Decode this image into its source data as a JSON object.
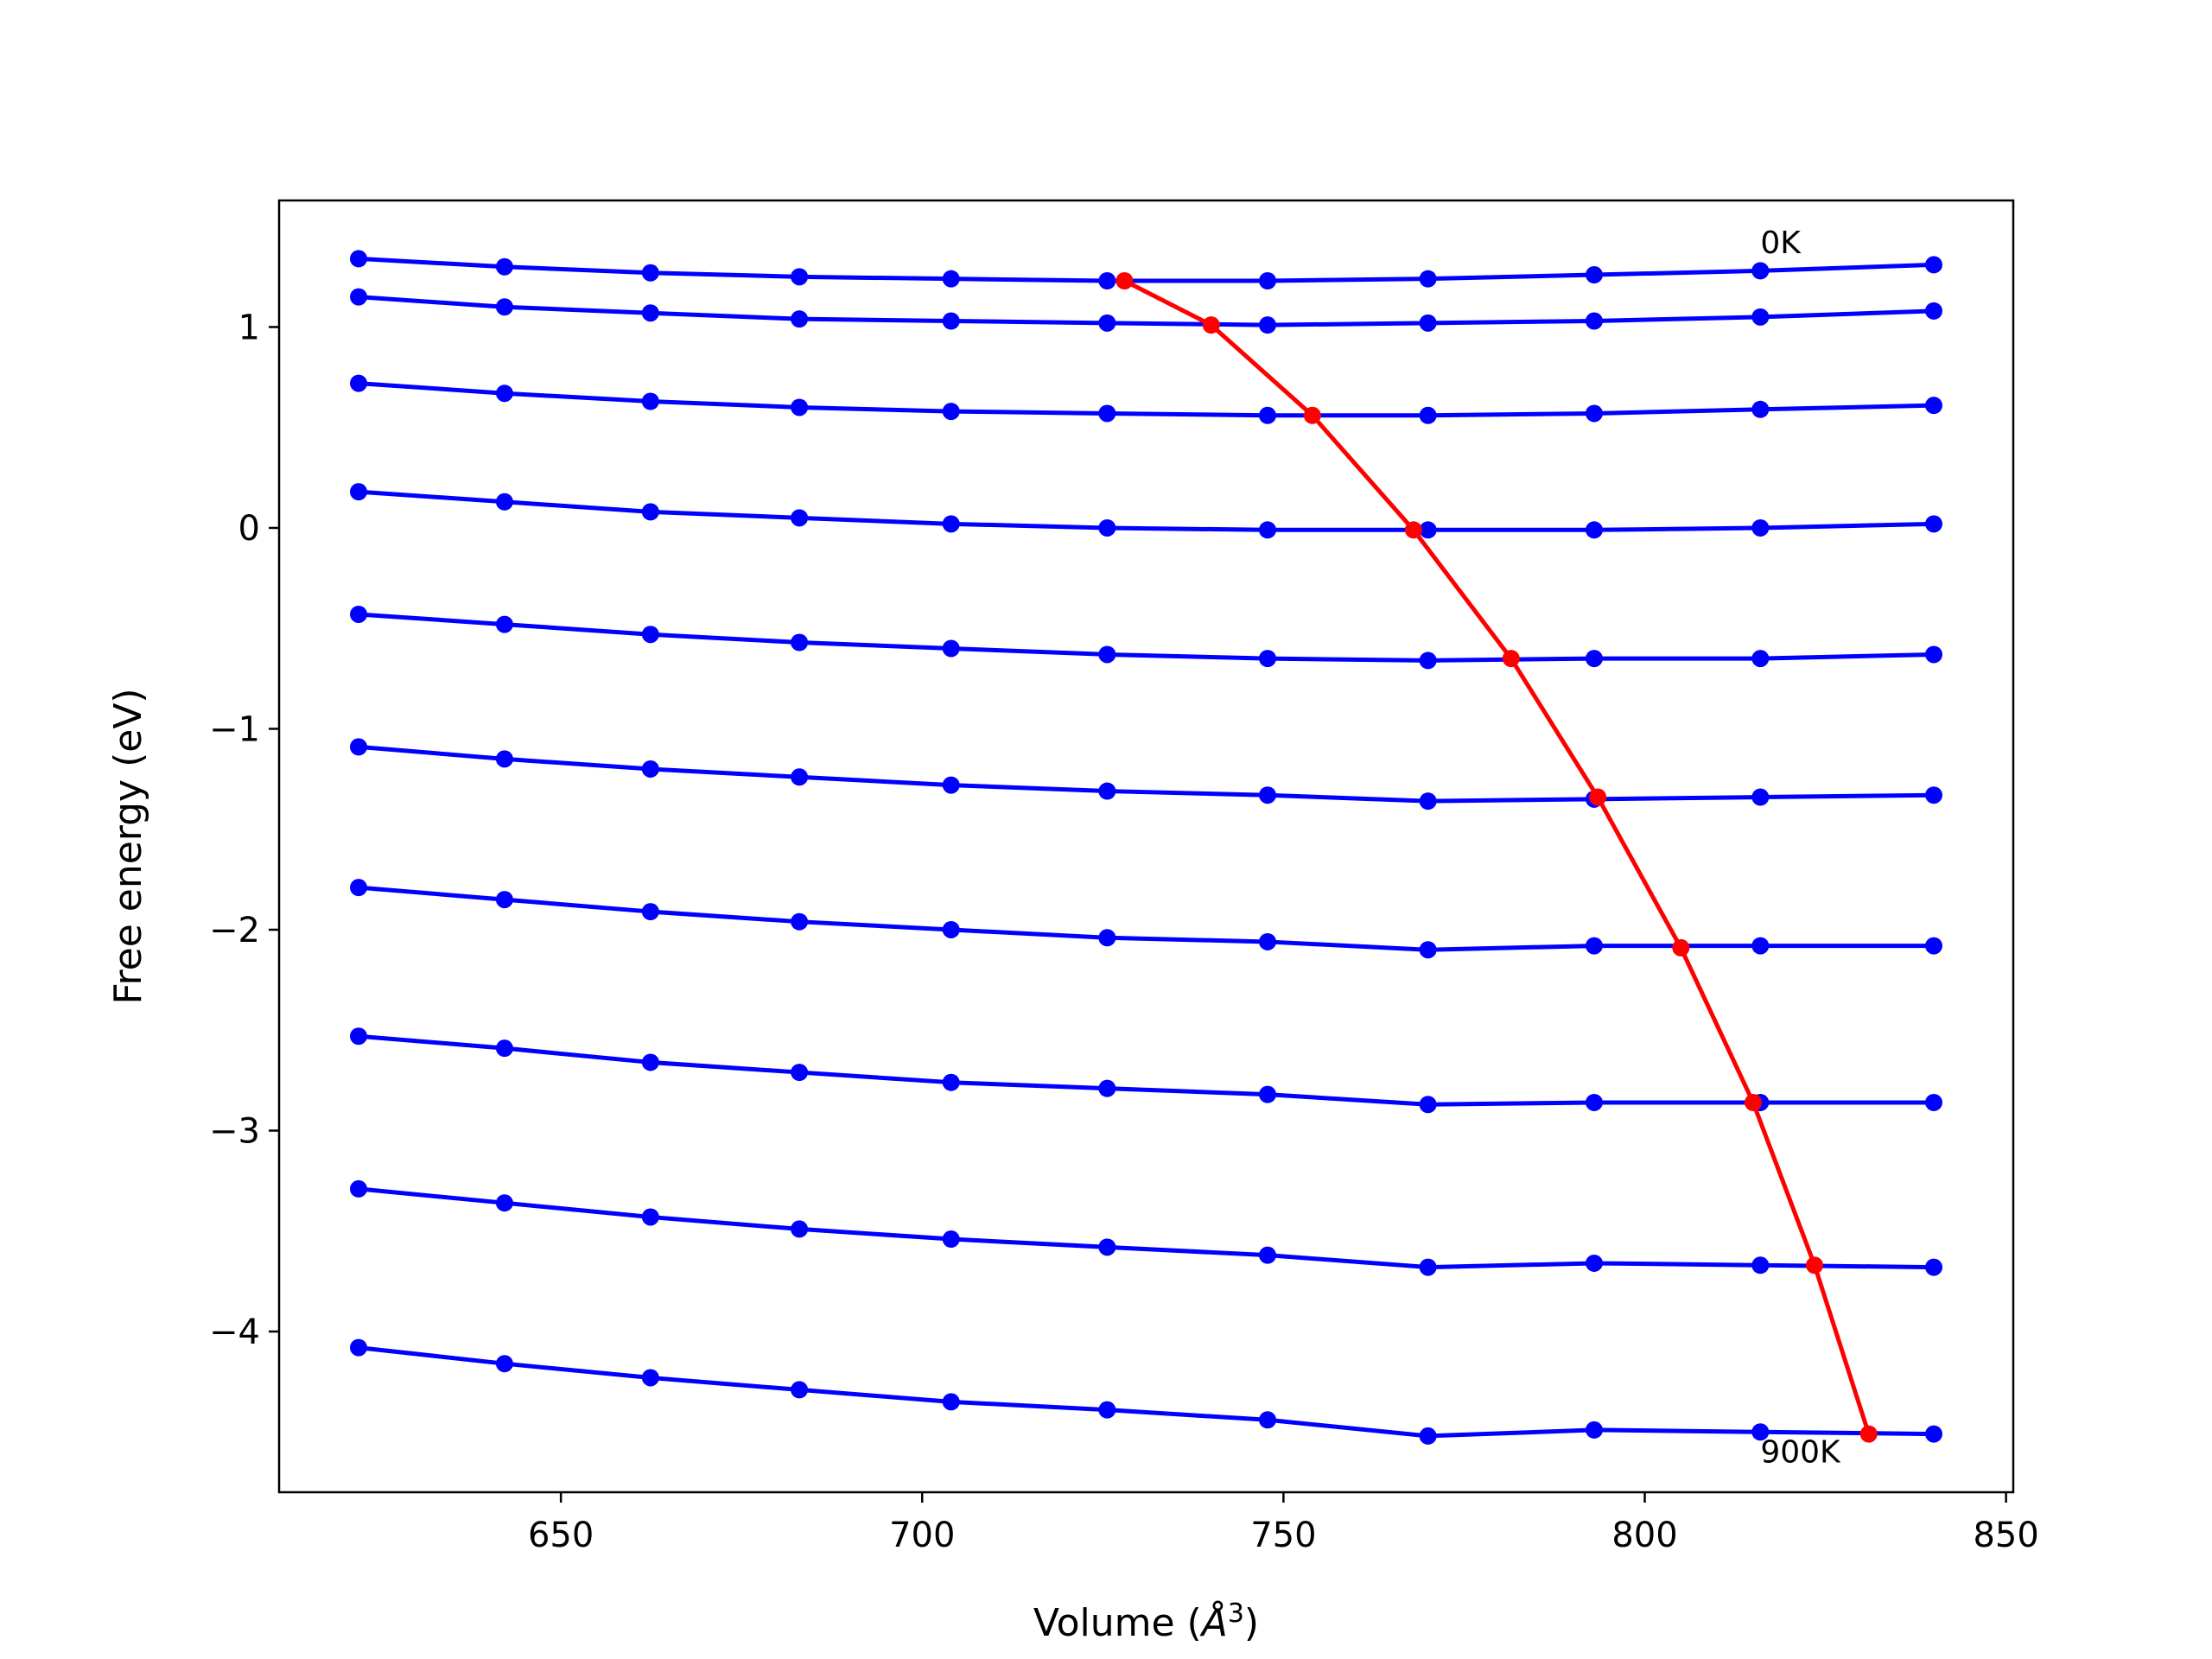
{
  "chart_data": {
    "type": "line",
    "xlabel_prefix": "Volume (",
    "xlabel_symbol": "Å",
    "xlabel_exp": "3",
    "xlabel_suffix": ")",
    "ylabel": "Free energy (eV)",
    "xlim": [
      611,
      851
    ],
    "ylim": [
      -4.8,
      1.63
    ],
    "xticks": [
      650,
      700,
      750,
      800,
      850
    ],
    "yticks": [
      -4,
      -3,
      -2,
      -1,
      0,
      1
    ],
    "annotations": [
      {
        "text": "0K",
        "x": 816,
        "y": 1.42
      },
      {
        "text": "900K",
        "x": 816,
        "y": -4.6
      }
    ],
    "colors": {
      "isotherm": "#0000ff",
      "equilibrium": "#ff0000"
    },
    "x": [
      622.0,
      642.2,
      662.4,
      683.0,
      704.0,
      725.6,
      747.8,
      770.0,
      793.0,
      816.0,
      840.0
    ],
    "series": [
      {
        "values": [
          1.34,
          1.3,
          1.27,
          1.25,
          1.24,
          1.23,
          1.23,
          1.24,
          1.26,
          1.28,
          1.31
        ]
      },
      {
        "values": [
          1.15,
          1.1,
          1.07,
          1.04,
          1.03,
          1.02,
          1.01,
          1.02,
          1.03,
          1.05,
          1.08
        ]
      },
      {
        "values": [
          0.72,
          0.67,
          0.63,
          0.6,
          0.58,
          0.57,
          0.56,
          0.56,
          0.57,
          0.59,
          0.61
        ]
      },
      {
        "values": [
          0.18,
          0.13,
          0.08,
          0.05,
          0.02,
          0.0,
          -0.01,
          -0.01,
          -0.01,
          0.0,
          0.02
        ]
      },
      {
        "values": [
          -0.43,
          -0.48,
          -0.53,
          -0.57,
          -0.6,
          -0.63,
          -0.65,
          -0.66,
          -0.65,
          -0.65,
          -0.63
        ]
      },
      {
        "values": [
          -1.09,
          -1.15,
          -1.2,
          -1.24,
          -1.28,
          -1.31,
          -1.33,
          -1.36,
          -1.35,
          -1.34,
          -1.33
        ]
      },
      {
        "values": [
          -1.79,
          -1.85,
          -1.91,
          -1.96,
          -2.0,
          -2.04,
          -2.06,
          -2.1,
          -2.08,
          -2.08,
          -2.08
        ]
      },
      {
        "values": [
          -2.53,
          -2.59,
          -2.66,
          -2.71,
          -2.76,
          -2.79,
          -2.82,
          -2.87,
          -2.86,
          -2.86,
          -2.86
        ]
      },
      {
        "values": [
          -3.29,
          -3.36,
          -3.43,
          -3.49,
          -3.54,
          -3.58,
          -3.62,
          -3.68,
          -3.66,
          -3.67,
          -3.68
        ]
      },
      {
        "values": [
          -4.08,
          -4.16,
          -4.23,
          -4.29,
          -4.35,
          -4.39,
          -4.44,
          -4.52,
          -4.49,
          -4.5,
          -4.51
        ]
      }
    ],
    "equilibrium": {
      "x": [
        728.0,
        740.0,
        754.0,
        768.0,
        781.5,
        793.5,
        805.0,
        815.0,
        823.5,
        831.0
      ],
      "values": [
        1.23,
        1.01,
        0.56,
        -0.01,
        -0.65,
        -1.34,
        -2.09,
        -2.86,
        -3.67,
        -4.51
      ]
    }
  }
}
